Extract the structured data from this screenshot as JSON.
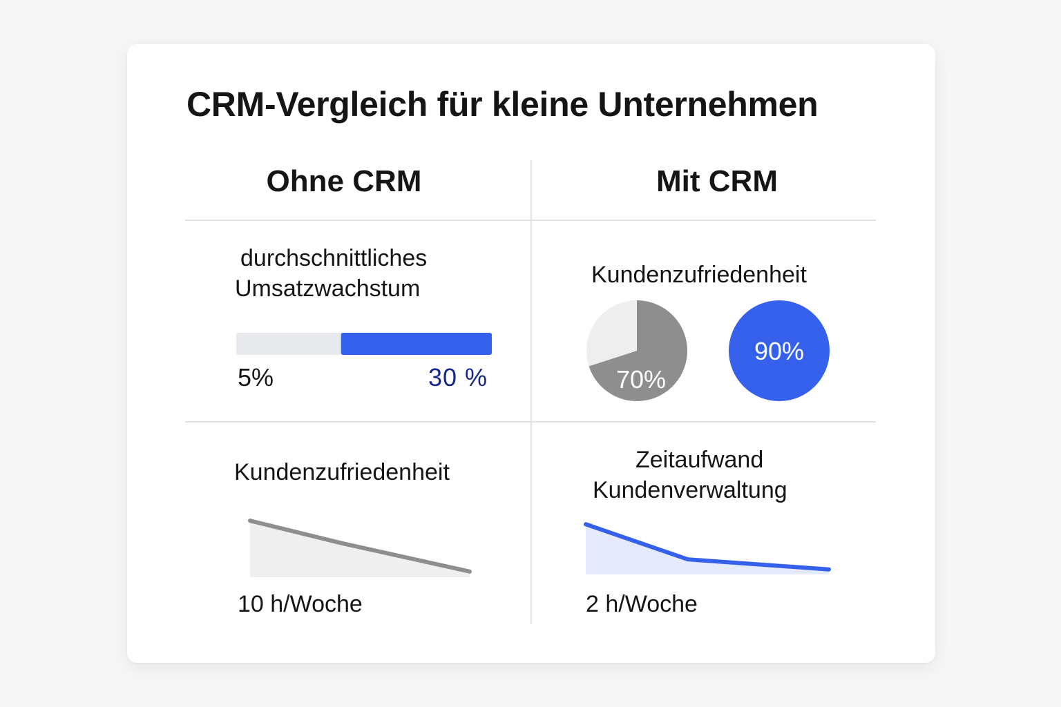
{
  "title": "CRM-Vergleich für kleine Unternehmen",
  "columns": {
    "left": "Ohne CRM",
    "right": "Mit CRM"
  },
  "colors": {
    "accent": "#3560ec",
    "gray": "#8e8e8e",
    "light": "#e8e9ec",
    "dark_blue_text": "#17288a"
  },
  "chart_data": [
    {
      "type": "bar",
      "title_lines": [
        "durchschnittliches",
        "Umsatzwachstum"
      ],
      "labels": [
        "5%",
        "30 %"
      ],
      "values": [
        5,
        30
      ],
      "bar_split_fraction": 0.41
    },
    {
      "type": "pie",
      "title": "Kundenzufriedenheit",
      "pies": [
        {
          "label": "70%",
          "value": 70,
          "color": "#8e8e8e"
        },
        {
          "label": "90%",
          "value": 90,
          "color": "#3560ec"
        }
      ]
    },
    {
      "type": "area",
      "title": "Kundenzufriedenheit",
      "value_label": "10 h/Woche",
      "y": [
        10,
        6,
        1
      ],
      "ylim": [
        0,
        11
      ],
      "color": "#8e8e8e"
    },
    {
      "type": "area",
      "title_lines": [
        "Zeitaufwand",
        "Kundenverwaltung"
      ],
      "value_label": "2 h/Woche",
      "y": [
        10,
        3,
        1
      ],
      "ylim": [
        0,
        11
      ],
      "color": "#3560ec"
    }
  ]
}
